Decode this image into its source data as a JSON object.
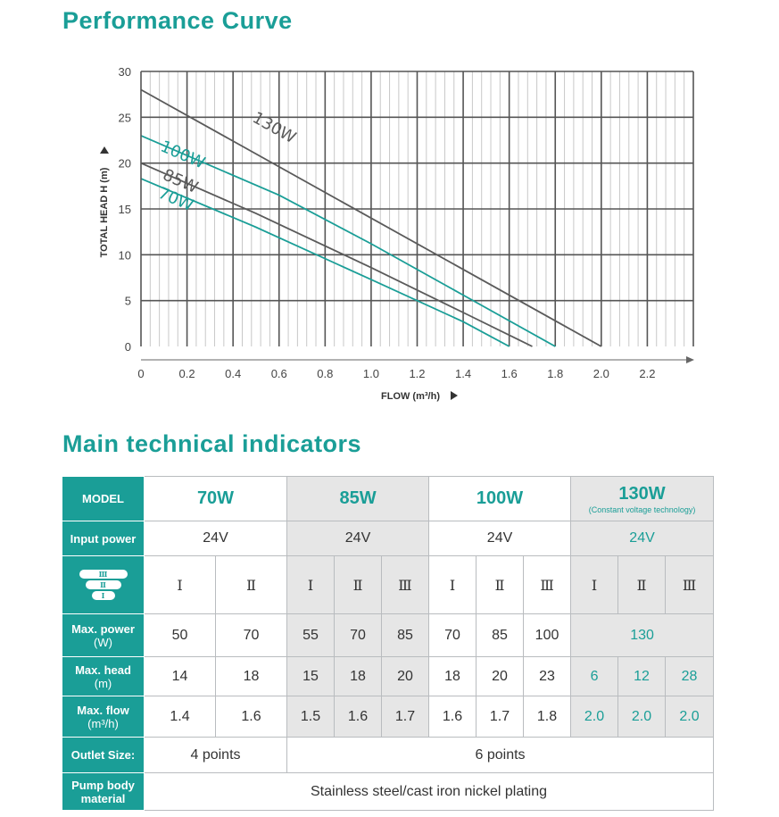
{
  "chart_title": "Performance Curve",
  "table_title": "Main technical indicators",
  "chart_data": {
    "type": "line",
    "title": "Performance Curve",
    "xlabel": "FLOW (m³/h)",
    "ylabel": "TOTAL HEAD H (m)",
    "xlim": [
      0,
      2.4
    ],
    "ylim": [
      0,
      30
    ],
    "x_ticks": [
      "0",
      "0.2",
      "0.4",
      "0.6",
      "0.8",
      "1.0",
      "1.2",
      "1.4",
      "1.6",
      "1.8",
      "2.0",
      "2.2"
    ],
    "y_ticks": [
      "0",
      "5",
      "10",
      "15",
      "20",
      "25",
      "30"
    ],
    "colors": {
      "teal": "#1a9e97",
      "gray": "#5a5a5a",
      "grid": "#555555",
      "minor_grid": "#c8c8c8"
    },
    "series": [
      {
        "name": "130W",
        "color": "#5a5a5a",
        "x": [
          0,
          2.0
        ],
        "y": [
          28,
          0
        ]
      },
      {
        "name": "100W",
        "color": "#1a9e97",
        "x": [
          0,
          0.6,
          1.0,
          1.4,
          1.8
        ],
        "y": [
          23,
          16.5,
          11.2,
          5.6,
          0
        ]
      },
      {
        "name": "85W",
        "color": "#5a5a5a",
        "x": [
          0,
          0.5,
          1.0,
          1.4,
          1.7
        ],
        "y": [
          20,
          14.5,
          8.6,
          3.7,
          0
        ]
      },
      {
        "name": "70W",
        "color": "#1a9e97",
        "x": [
          0,
          0.5,
          1.0,
          1.4,
          1.6
        ],
        "y": [
          18.3,
          13,
          7.3,
          2.7,
          0
        ]
      }
    ]
  },
  "table": {
    "model_label": "MODEL",
    "models": [
      {
        "name": "70W"
      },
      {
        "name": "85W"
      },
      {
        "name": "100W"
      },
      {
        "name": "130W",
        "note": "(Constant voltage technology)"
      }
    ],
    "input_power_label": "Input power",
    "input_power": [
      "24V",
      "24V",
      "24V",
      "24V"
    ],
    "speed_icon": {
      "icon": "speed-stack-icon",
      "levels": [
        "Ⅲ",
        "Ⅱ",
        "Ⅰ"
      ]
    },
    "speeds": [
      "Ⅰ",
      "Ⅱ",
      "Ⅰ",
      "Ⅱ",
      "Ⅲ",
      "Ⅰ",
      "Ⅱ",
      "Ⅲ",
      "Ⅰ",
      "Ⅱ",
      "Ⅲ"
    ],
    "max_power_label": "Max. power",
    "max_power_unit": "(W)",
    "max_power": [
      "50",
      "70",
      "55",
      "70",
      "85",
      "70",
      "85",
      "100",
      "130"
    ],
    "max_head_label": "Max. head",
    "max_head_unit": "(m)",
    "max_head": [
      "14",
      "18",
      "15",
      "18",
      "20",
      "18",
      "20",
      "23",
      "6",
      "12",
      "28"
    ],
    "max_flow_label": "Max. flow",
    "max_flow_unit": "(m³/h)",
    "max_flow": [
      "1.4",
      "1.6",
      "1.5",
      "1.6",
      "1.7",
      "1.6",
      "1.7",
      "1.8",
      "2.0",
      "2.0",
      "2.0"
    ],
    "outlet_label": "Outlet Size:",
    "outlet": [
      "4 points",
      "6 points"
    ],
    "material_label": "Pump body material",
    "material": "Stainless steel/cast iron nickel plating"
  }
}
